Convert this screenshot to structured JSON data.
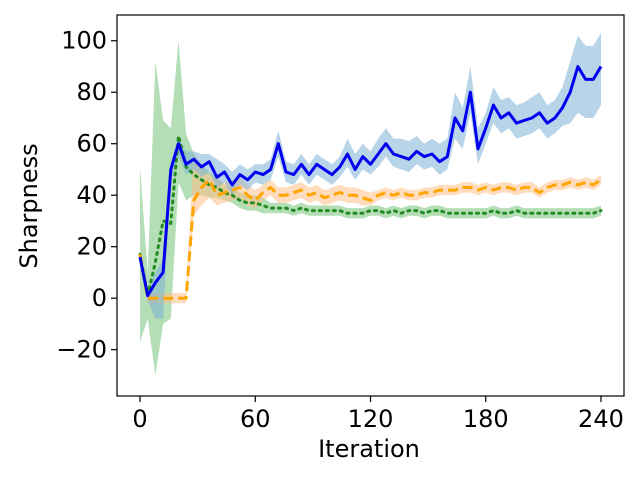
{
  "chart_data": {
    "type": "line",
    "title": "",
    "xlabel": "Iteration",
    "ylabel": "Sharpness",
    "xlim": [
      -12,
      252
    ],
    "ylim": [
      -38,
      110
    ],
    "xticks": [
      0,
      60,
      120,
      180,
      240
    ],
    "xtick_labels": [
      "0",
      "60",
      "120",
      "180",
      "240"
    ],
    "yticks": [
      -20,
      0,
      20,
      40,
      60,
      80,
      100
    ],
    "ytick_labels": [
      "−20",
      "0",
      "20",
      "40",
      "60",
      "80",
      "100"
    ],
    "grid": false,
    "legend": "none",
    "series": [
      {
        "name": "green-dotted",
        "color": "#228b22",
        "band_color": "#77c27a",
        "style": "dotted",
        "x": [
          0,
          4,
          8,
          12,
          16,
          20,
          24,
          28,
          32,
          36,
          40,
          44,
          48,
          52,
          56,
          60,
          64,
          68,
          72,
          76,
          80,
          84,
          88,
          92,
          96,
          100,
          104,
          108,
          112,
          116,
          120,
          124,
          128,
          132,
          136,
          140,
          144,
          148,
          152,
          156,
          160,
          164,
          168,
          172,
          176,
          180,
          184,
          188,
          192,
          196,
          200,
          204,
          208,
          212,
          216,
          220,
          224,
          228,
          232,
          236,
          240
        ],
        "y": [
          17,
          1,
          14,
          30,
          29,
          63,
          51,
          48,
          46,
          44,
          43,
          41,
          40,
          38,
          37,
          37,
          36,
          35,
          35,
          35,
          34,
          35,
          34,
          34,
          34,
          34,
          34,
          33,
          33,
          33,
          34,
          34,
          33,
          34,
          33,
          34,
          34,
          33,
          34,
          34,
          33,
          33,
          33,
          33,
          33,
          33,
          34,
          33,
          33,
          34,
          33,
          33,
          33,
          33,
          33,
          33,
          33,
          33,
          33,
          33,
          34
        ],
        "lower": [
          -17,
          -8,
          -30,
          -10,
          -8,
          45,
          38,
          40,
          40,
          39,
          39,
          38,
          37,
          35,
          34,
          34,
          33,
          33,
          33,
          33,
          32,
          33,
          32,
          32,
          32,
          32,
          32,
          31,
          31,
          31,
          32,
          32,
          31,
          32,
          31,
          32,
          32,
          31,
          32,
          32,
          31,
          31,
          31,
          31,
          31,
          31,
          32,
          31,
          31,
          32,
          31,
          31,
          31,
          31,
          31,
          31,
          31,
          31,
          31,
          31,
          32
        ],
        "upper": [
          51,
          10,
          92,
          69,
          66,
          100,
          64,
          56,
          52,
          49,
          47,
          44,
          43,
          41,
          40,
          40,
          39,
          37,
          37,
          37,
          36,
          37,
          36,
          36,
          36,
          36,
          36,
          35,
          35,
          35,
          36,
          36,
          35,
          36,
          35,
          36,
          36,
          35,
          36,
          36,
          35,
          35,
          35,
          35,
          35,
          35,
          36,
          35,
          35,
          36,
          35,
          35,
          35,
          35,
          35,
          35,
          35,
          35,
          35,
          35,
          36
        ]
      },
      {
        "name": "orange-dashed",
        "color": "#ffa500",
        "band_color": "#ffbf86",
        "style": "dashed",
        "x": [
          0,
          4,
          8,
          12,
          16,
          20,
          24,
          28,
          32,
          36,
          40,
          44,
          48,
          52,
          56,
          60,
          64,
          68,
          72,
          76,
          80,
          84,
          88,
          92,
          96,
          100,
          104,
          108,
          112,
          116,
          120,
          124,
          128,
          132,
          136,
          140,
          144,
          148,
          152,
          156,
          160,
          164,
          168,
          172,
          176,
          180,
          184,
          188,
          192,
          196,
          200,
          204,
          208,
          212,
          216,
          220,
          224,
          228,
          232,
          236,
          240
        ],
        "y": [
          17,
          0,
          0,
          0,
          0,
          0,
          0,
          38,
          43,
          46,
          40,
          41,
          42,
          43,
          40,
          38,
          41,
          43,
          40,
          40,
          41,
          42,
          40,
          41,
          39,
          40,
          41,
          40,
          40,
          39,
          38,
          40,
          41,
          40,
          41,
          40,
          40,
          41,
          41,
          42,
          42,
          42,
          43,
          43,
          42,
          43,
          42,
          43,
          43,
          42,
          43,
          43,
          41,
          43,
          44,
          44,
          45,
          44,
          45,
          44,
          46
        ],
        "lower": [
          15,
          -2,
          -2,
          -2,
          -2,
          -2,
          -2,
          32,
          36,
          39,
          36,
          37,
          38,
          39,
          36,
          35,
          38,
          40,
          37,
          37,
          38,
          39,
          37,
          38,
          36,
          37,
          38,
          37,
          37,
          36,
          36,
          38,
          39,
          38,
          39,
          38,
          38,
          39,
          39,
          40,
          40,
          40,
          41,
          41,
          40,
          41,
          40,
          41,
          41,
          40,
          41,
          41,
          39,
          41,
          42,
          42,
          43,
          42,
          43,
          42,
          44
        ],
        "upper": [
          19,
          2,
          2,
          2,
          2,
          2,
          2,
          57,
          50,
          48,
          46,
          45,
          46,
          47,
          44,
          42,
          44,
          46,
          43,
          43,
          44,
          45,
          43,
          44,
          42,
          43,
          44,
          43,
          43,
          42,
          41,
          42,
          43,
          42,
          43,
          42,
          42,
          43,
          43,
          44,
          44,
          44,
          45,
          45,
          44,
          45,
          44,
          45,
          45,
          44,
          45,
          45,
          43,
          45,
          46,
          46,
          47,
          46,
          47,
          46,
          48
        ]
      },
      {
        "name": "blue-solid",
        "color": "#0000ee",
        "band_color": "#7eb0d6",
        "style": "solid",
        "x": [
          0,
          4,
          8,
          12,
          16,
          20,
          24,
          28,
          32,
          36,
          40,
          44,
          48,
          52,
          56,
          60,
          64,
          68,
          72,
          76,
          80,
          84,
          88,
          92,
          96,
          100,
          104,
          108,
          112,
          116,
          120,
          124,
          128,
          132,
          136,
          140,
          144,
          148,
          152,
          156,
          160,
          164,
          168,
          172,
          176,
          180,
          184,
          188,
          192,
          196,
          200,
          204,
          208,
          212,
          216,
          220,
          224,
          228,
          232,
          236,
          240
        ],
        "y": [
          16,
          1,
          6,
          10,
          50,
          60,
          52,
          54,
          51,
          53,
          47,
          49,
          44,
          48,
          46,
          49,
          48,
          50,
          60,
          49,
          48,
          52,
          48,
          52,
          50,
          48,
          51,
          56,
          50,
          55,
          52,
          56,
          60,
          56,
          55,
          54,
          57,
          55,
          56,
          53,
          55,
          70,
          65,
          80,
          58,
          66,
          75,
          70,
          72,
          68,
          69,
          70,
          72,
          68,
          70,
          74,
          80,
          90,
          85,
          85,
          90
        ],
        "lower": [
          14,
          -1,
          -8,
          -8,
          46,
          55,
          48,
          50,
          47,
          49,
          43,
          45,
          40,
          44,
          42,
          45,
          44,
          46,
          55,
          45,
          44,
          48,
          44,
          48,
          46,
          44,
          47,
          51,
          46,
          50,
          48,
          51,
          55,
          51,
          50,
          49,
          52,
          50,
          51,
          48,
          50,
          62,
          58,
          72,
          52,
          60,
          68,
          64,
          66,
          62,
          63,
          64,
          66,
          62,
          64,
          67,
          68,
          72,
          70,
          70,
          75
        ],
        "upper": [
          18,
          3,
          10,
          15,
          53,
          63,
          57,
          57,
          56,
          56,
          54,
          52,
          49,
          52,
          50,
          52,
          52,
          54,
          65,
          53,
          52,
          56,
          52,
          56,
          54,
          52,
          55,
          62,
          56,
          60,
          57,
          62,
          66,
          62,
          62,
          61,
          63,
          60,
          62,
          60,
          62,
          80,
          74,
          90,
          66,
          72,
          82,
          77,
          78,
          75,
          76,
          78,
          80,
          75,
          77,
          82,
          92,
          102,
          98,
          98,
          103
        ]
      }
    ]
  }
}
